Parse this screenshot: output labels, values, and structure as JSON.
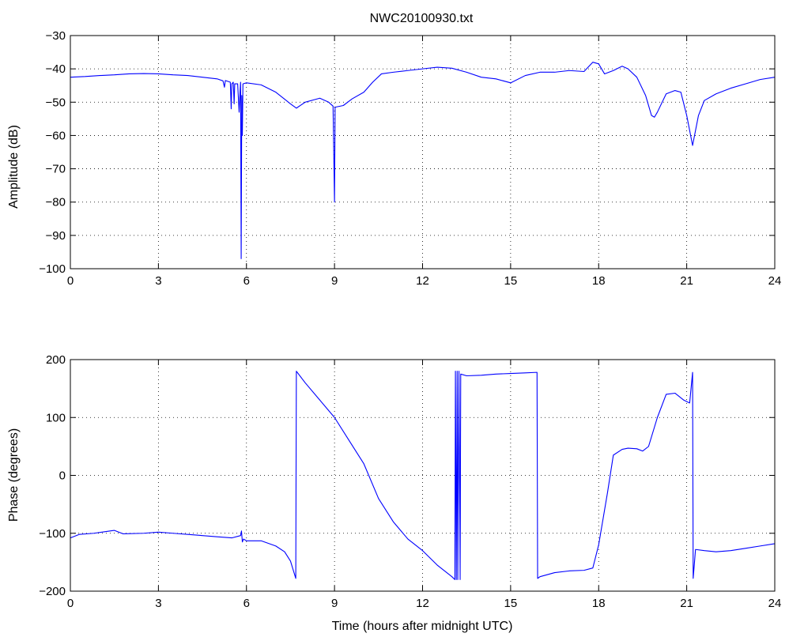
{
  "figure": {
    "title": "NWC20100930.txt"
  },
  "chart_data": [
    {
      "type": "line",
      "title": "NWC20100930.txt",
      "xlabel": "",
      "ylabel": "Amplitude (dB)",
      "xlim": [
        0,
        24
      ],
      "ylim": [
        -100,
        -30
      ],
      "xticks": [
        0,
        3,
        6,
        9,
        12,
        15,
        18,
        21,
        24
      ],
      "yticks": [
        -100,
        -90,
        -80,
        -70,
        -60,
        -50,
        -40,
        -30
      ],
      "grid": true,
      "line_color": "#0000ff",
      "series": [
        {
          "points": [
            [
              0,
              -42.5
            ],
            [
              0.5,
              -42.3
            ],
            [
              1.0,
              -42.0
            ],
            [
              1.5,
              -41.8
            ],
            [
              2.0,
              -41.5
            ],
            [
              2.5,
              -41.4
            ],
            [
              3.0,
              -41.5
            ],
            [
              3.5,
              -41.8
            ],
            [
              4.0,
              -42.0
            ],
            [
              4.5,
              -42.5
            ],
            [
              5.0,
              -43.0
            ],
            [
              5.2,
              -43.6
            ],
            [
              5.25,
              -45.5
            ],
            [
              5.28,
              -43.5
            ],
            [
              5.45,
              -44.0
            ],
            [
              5.48,
              -52.0
            ],
            [
              5.5,
              -44.5
            ],
            [
              5.55,
              -44.0
            ],
            [
              5.58,
              -50.5
            ],
            [
              5.6,
              -44.5
            ],
            [
              5.7,
              -44.5
            ],
            [
              5.75,
              -53.0
            ],
            [
              5.78,
              -47.0
            ],
            [
              5.8,
              -44.0
            ],
            [
              5.82,
              -97.0
            ],
            [
              5.84,
              -48.0
            ],
            [
              5.86,
              -60.0
            ],
            [
              5.88,
              -44.5
            ],
            [
              6.0,
              -44.2
            ],
            [
              6.5,
              -44.8
            ],
            [
              7.0,
              -47.0
            ],
            [
              7.5,
              -50.5
            ],
            [
              7.7,
              -51.8
            ],
            [
              8.0,
              -50.0
            ],
            [
              8.5,
              -48.8
            ],
            [
              8.8,
              -50.0
            ],
            [
              8.95,
              -51.2
            ],
            [
              9.0,
              -80.0
            ],
            [
              9.02,
              -51.5
            ],
            [
              9.3,
              -51.0
            ],
            [
              9.6,
              -49.0
            ],
            [
              10.0,
              -47.0
            ],
            [
              10.3,
              -44.0
            ],
            [
              10.6,
              -41.5
            ],
            [
              11.0,
              -41.0
            ],
            [
              11.5,
              -40.5
            ],
            [
              12.0,
              -40.0
            ],
            [
              12.5,
              -39.5
            ],
            [
              13.0,
              -39.8
            ],
            [
              13.5,
              -41.0
            ],
            [
              14.0,
              -42.5
            ],
            [
              14.5,
              -43.0
            ],
            [
              15.0,
              -44.2
            ],
            [
              15.5,
              -42.0
            ],
            [
              16.0,
              -41.0
            ],
            [
              16.5,
              -41.0
            ],
            [
              17.0,
              -40.5
            ],
            [
              17.5,
              -40.8
            ],
            [
              17.8,
              -38.0
            ],
            [
              18.0,
              -38.5
            ],
            [
              18.2,
              -41.5
            ],
            [
              18.5,
              -40.5
            ],
            [
              18.8,
              -39.2
            ],
            [
              19.0,
              -40.0
            ],
            [
              19.3,
              -42.5
            ],
            [
              19.6,
              -48.0
            ],
            [
              19.8,
              -54.0
            ],
            [
              19.9,
              -54.5
            ],
            [
              20.0,
              -53.0
            ],
            [
              20.3,
              -47.5
            ],
            [
              20.6,
              -46.5
            ],
            [
              20.8,
              -47.0
            ],
            [
              21.0,
              -54.0
            ],
            [
              21.2,
              -63.0
            ],
            [
              21.4,
              -54.0
            ],
            [
              21.6,
              -49.5
            ],
            [
              22.0,
              -47.5
            ],
            [
              22.5,
              -45.8
            ],
            [
              23.0,
              -44.5
            ],
            [
              23.5,
              -43.2
            ],
            [
              24.0,
              -42.5
            ]
          ]
        }
      ]
    },
    {
      "type": "line",
      "title": "",
      "xlabel": "Time (hours after midnight UTC)",
      "ylabel": "Phase (degrees)",
      "xlim": [
        0,
        24
      ],
      "ylim": [
        -200,
        200
      ],
      "xticks": [
        0,
        3,
        6,
        9,
        12,
        15,
        18,
        21,
        24
      ],
      "yticks": [
        -200,
        -100,
        0,
        100,
        200
      ],
      "grid": true,
      "line_color": "#0000ff",
      "series": [
        {
          "points": [
            [
              0,
              -108
            ],
            [
              0.3,
              -102
            ],
            [
              0.8,
              -100
            ],
            [
              1.5,
              -95
            ],
            [
              1.8,
              -101
            ],
            [
              2.5,
              -100
            ],
            [
              3.0,
              -98
            ],
            [
              3.5,
              -100
            ],
            [
              4.0,
              -102
            ],
            [
              4.5,
              -104
            ],
            [
              5.0,
              -106
            ],
            [
              5.5,
              -108
            ],
            [
              5.8,
              -104
            ],
            [
              5.83,
              -96
            ],
            [
              5.86,
              -115
            ],
            [
              5.9,
              -110
            ],
            [
              6.0,
              -113
            ],
            [
              6.5,
              -113
            ],
            [
              7.0,
              -122
            ],
            [
              7.3,
              -132
            ],
            [
              7.5,
              -148
            ],
            [
              7.68,
              -178
            ],
            [
              7.7,
              180
            ],
            [
              8.0,
              160
            ],
            [
              8.5,
              130
            ],
            [
              9.0,
              100
            ],
            [
              9.5,
              60
            ],
            [
              10.0,
              20
            ],
            [
              10.5,
              -40
            ],
            [
              11.0,
              -80
            ],
            [
              11.5,
              -110
            ],
            [
              12.0,
              -130
            ],
            [
              12.5,
              -155
            ],
            [
              13.0,
              -175
            ],
            [
              13.1,
              -180
            ],
            [
              13.12,
              180
            ],
            [
              13.15,
              -180
            ],
            [
              13.18,
              180
            ],
            [
              13.2,
              -180
            ],
            [
              13.24,
              180
            ],
            [
              13.28,
              -180
            ],
            [
              13.3,
              175
            ],
            [
              13.5,
              172
            ],
            [
              14.0,
              173
            ],
            [
              14.5,
              175
            ],
            [
              15.0,
              176
            ],
            [
              15.5,
              177
            ],
            [
              15.9,
              178
            ],
            [
              15.92,
              -178
            ],
            [
              16.0,
              -175
            ],
            [
              16.5,
              -168
            ],
            [
              17.0,
              -165
            ],
            [
              17.5,
              -164
            ],
            [
              17.8,
              -160
            ],
            [
              18.0,
              -120
            ],
            [
              18.3,
              -30
            ],
            [
              18.5,
              35
            ],
            [
              18.8,
              45
            ],
            [
              19.0,
              47
            ],
            [
              19.3,
              46
            ],
            [
              19.5,
              42
            ],
            [
              19.7,
              50
            ],
            [
              20.0,
              100
            ],
            [
              20.3,
              140
            ],
            [
              20.6,
              142
            ],
            [
              20.9,
              130
            ],
            [
              21.1,
              125
            ],
            [
              21.2,
              178
            ],
            [
              21.22,
              -178
            ],
            [
              21.3,
              -128
            ],
            [
              21.6,
              -130
            ],
            [
              22.0,
              -132
            ],
            [
              22.5,
              -130
            ],
            [
              23.0,
              -126
            ],
            [
              23.5,
              -122
            ],
            [
              24.0,
              -118
            ]
          ]
        }
      ]
    }
  ]
}
